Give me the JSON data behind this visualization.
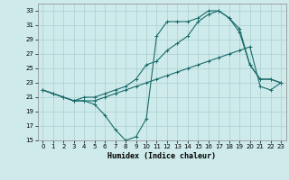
{
  "xlabel": "Humidex (Indice chaleur)",
  "bg_color": "#ceeaea",
  "grid_color": "#afd4d4",
  "line_color": "#1a6b6b",
  "xlim": [
    -0.5,
    23.5
  ],
  "ylim": [
    15,
    34
  ],
  "xticks": [
    0,
    1,
    2,
    3,
    4,
    5,
    6,
    7,
    8,
    9,
    10,
    11,
    12,
    13,
    14,
    15,
    16,
    17,
    18,
    19,
    20,
    21,
    22,
    23
  ],
  "yticks": [
    15,
    17,
    19,
    21,
    23,
    25,
    27,
    29,
    31,
    33
  ],
  "line1_x": [
    0,
    1,
    2,
    3,
    4,
    5,
    6,
    7,
    8,
    9,
    10,
    11,
    12,
    13,
    14,
    15,
    16,
    17,
    18,
    19,
    20,
    21,
    22,
    23
  ],
  "line1_y": [
    22.0,
    21.5,
    21.0,
    20.5,
    20.5,
    20.5,
    21.0,
    21.5,
    22.0,
    22.5,
    23.0,
    23.5,
    24.0,
    24.5,
    25.0,
    25.5,
    26.0,
    26.5,
    27.0,
    27.5,
    28.0,
    22.5,
    22.0,
    23.0
  ],
  "line2_x": [
    0,
    1,
    2,
    3,
    4,
    5,
    6,
    7,
    8,
    9,
    10,
    11,
    12,
    13,
    14,
    15,
    16,
    17,
    18,
    19,
    20,
    21,
    22,
    23
  ],
  "line2_y": [
    22.0,
    21.5,
    21.0,
    20.5,
    21.0,
    21.0,
    21.5,
    22.0,
    22.5,
    23.5,
    25.5,
    26.0,
    27.5,
    28.5,
    29.5,
    31.5,
    32.5,
    33.0,
    32.0,
    30.5,
    25.5,
    23.5,
    23.5,
    23.0
  ],
  "line3_x": [
    0,
    1,
    2,
    3,
    4,
    5,
    6,
    7,
    8,
    9,
    10,
    11,
    12,
    13,
    14,
    15,
    16,
    17,
    18,
    19,
    20,
    21,
    22,
    23
  ],
  "line3_y": [
    22.0,
    21.5,
    21.0,
    20.5,
    20.5,
    20.0,
    18.5,
    16.5,
    15.0,
    15.5,
    18.0,
    29.5,
    31.5,
    31.5,
    31.5,
    32.0,
    33.0,
    33.0,
    32.0,
    30.0,
    25.5,
    23.5,
    23.5,
    23.0
  ],
  "marker": "+"
}
